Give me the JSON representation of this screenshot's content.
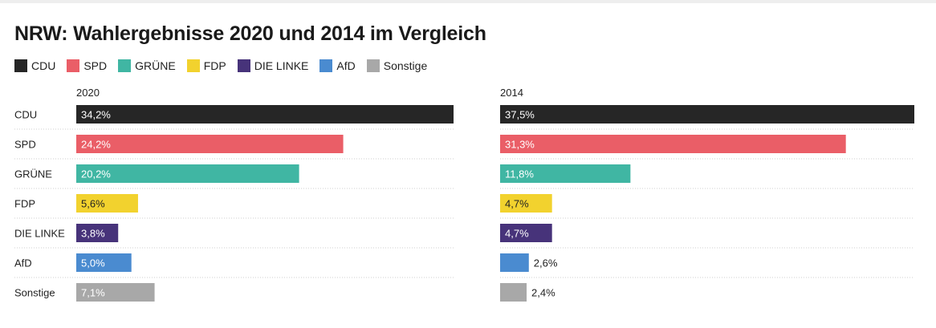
{
  "chart_data": {
    "type": "bar",
    "title": "NRW: Wahlergebnisse 2020 und 2014 im Vergleich",
    "categories": [
      "CDU",
      "SPD",
      "GRÜNE",
      "FDP",
      "DIE LINKE",
      "AfD",
      "Sonstige"
    ],
    "colors": [
      "#262626",
      "#ea5e67",
      "#40b6a3",
      "#f2d22e",
      "#47337a",
      "#4a8bd0",
      "#a8a8a8"
    ],
    "series": [
      {
        "name": "2020",
        "values": [
          34.2,
          24.2,
          20.2,
          5.6,
          3.8,
          5.0,
          7.1
        ],
        "labels": [
          "34,2%",
          "24,2%",
          "20,2%",
          "5,6%",
          "3,8%",
          "5,0%",
          "7,1%"
        ]
      },
      {
        "name": "2014",
        "values": [
          37.5,
          31.3,
          11.8,
          4.7,
          4.7,
          2.6,
          2.4
        ],
        "labels": [
          "37,5%",
          "31,3%",
          "11,8%",
          "4,7%",
          "4,7%",
          "2,6%",
          "2,4%"
        ]
      }
    ],
    "xlim": [
      0,
      37.5
    ],
    "grid": true,
    "legend_position": "top-left"
  }
}
